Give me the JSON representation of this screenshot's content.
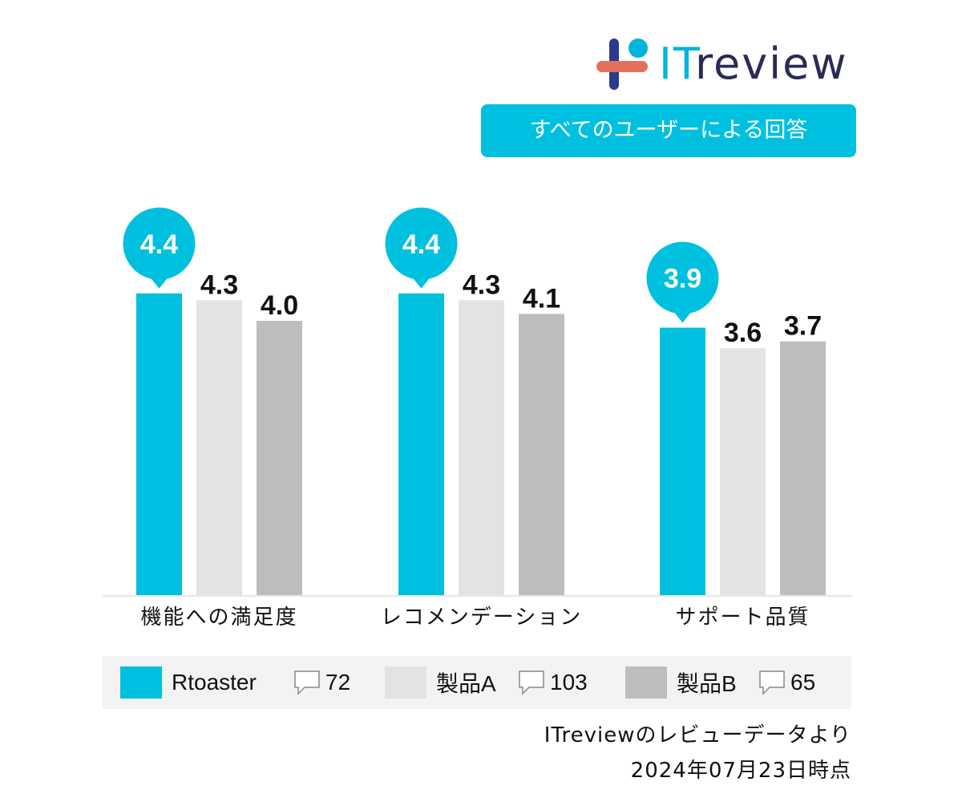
{
  "logo": {
    "text_it": "IT",
    "text_review": "review"
  },
  "badge": "すべてのユーザーによる回答",
  "chart_data": {
    "type": "bar",
    "categories": [
      "機能への満足度",
      "レコメンデーション",
      "サポート品質"
    ],
    "series": [
      {
        "name": "Rtoaster",
        "values": [
          4.4,
          4.4,
          3.9
        ],
        "color": "#00c0e0"
      },
      {
        "name": "製品A",
        "values": [
          4.3,
          4.3,
          3.6
        ],
        "color": "#e3e3e3"
      },
      {
        "name": "製品B",
        "values": [
          4.0,
          4.1,
          3.7
        ],
        "color": "#bdbdbd"
      }
    ],
    "value_labels": [
      [
        "4.4",
        "4.4",
        "3.9"
      ],
      [
        "4.3",
        "4.3",
        "3.6"
      ],
      [
        "4.0",
        "4.1",
        "3.7"
      ]
    ],
    "highlight_series": "Rtoaster",
    "ylim": [
      0,
      5
    ],
    "legend": "bottom",
    "grid": false
  },
  "legend_items": [
    {
      "name": "Rtoaster",
      "count": "72",
      "color": "#00c0e0"
    },
    {
      "name": "製品A",
      "count": "103",
      "color": "#e3e3e3"
    },
    {
      "name": "製品B",
      "count": "65",
      "color": "#bdbdbd"
    }
  ],
  "footer": {
    "source": "ITreviewのレビューデータより",
    "date": "2024年07月23日時点"
  }
}
